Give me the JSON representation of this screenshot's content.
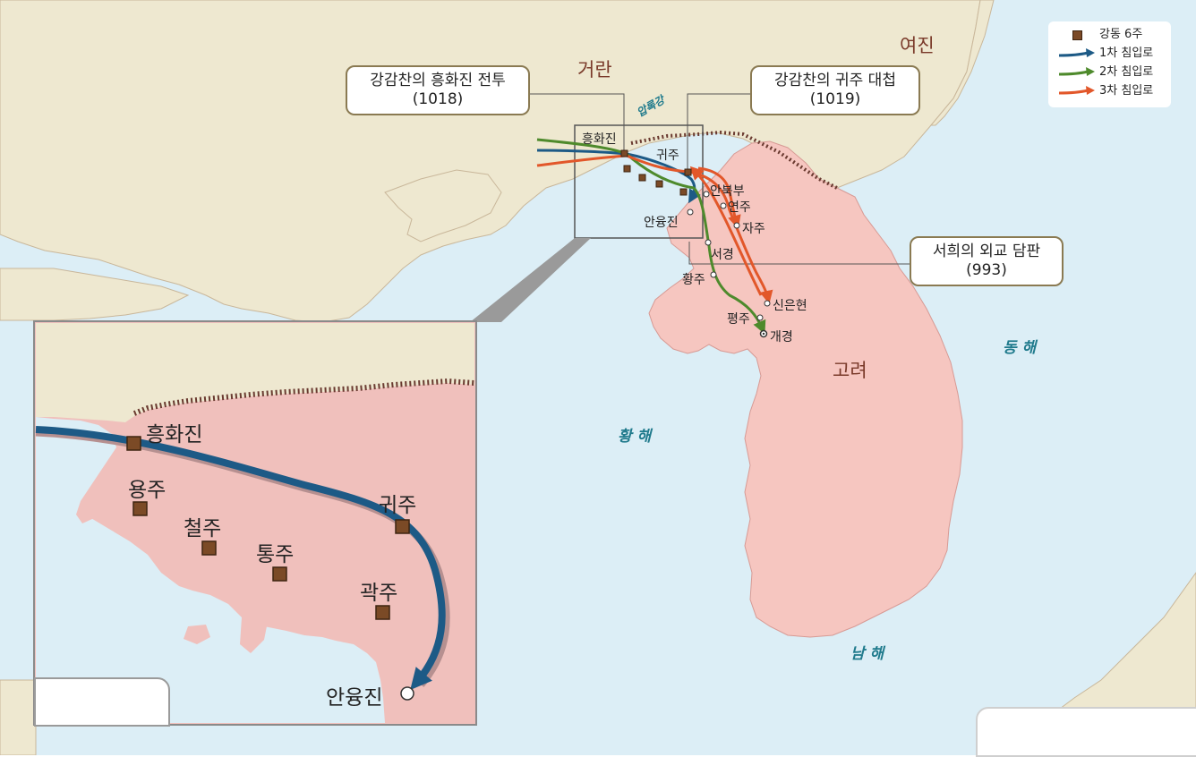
{
  "colors": {
    "sea": "#dceef6",
    "goryeo_land": "#f6c6c0",
    "foreign_land": "#eee8d0",
    "route_1": "#1d5a86",
    "route_2": "#4e8a2c",
    "route_3": "#e2572a",
    "fort_marker": "#7b4a26"
  },
  "map": {
    "regions": {
      "georan": "거란",
      "yeojin": "여진",
      "goryeo": "고려"
    },
    "seas": {
      "east": "동 해",
      "yellow": "황 해",
      "south": "남 해"
    },
    "river": "압록강",
    "places": {
      "heunghwajin": "흥화진",
      "gwiju": "귀주",
      "anbukbu": "안북부",
      "yeonju": "연주",
      "jaju": "자주",
      "anyungjin": "안융진",
      "seogyeong": "서경",
      "hwangju": "황주",
      "sineunhyeon": "신은현",
      "pyeongju": "평주",
      "gaegyeong": "개경"
    },
    "callouts": {
      "heunghwajin_battle": {
        "line1": "강감찬의 흥화진 전투",
        "line2": "(1018)"
      },
      "gwiju_battle": {
        "line1": "강감찬의 귀주 대첩",
        "line2": "(1019)"
      },
      "seohui_talks": {
        "line1": "서희의 외교 담판",
        "line2": "(993)"
      }
    }
  },
  "legend": {
    "items": [
      {
        "label": "강동 6주",
        "symbol": "square-marker-icon"
      },
      {
        "label": "1차 침입로",
        "symbol": "arrow-blue-icon"
      },
      {
        "label": "2차 침입로",
        "symbol": "arrow-green-icon"
      },
      {
        "label": "3차 침입로",
        "symbol": "arrow-orange-icon"
      }
    ]
  },
  "inset": {
    "places": {
      "heunghwajin": "흥화진",
      "yongju": "용주",
      "cheolju": "철주",
      "tongju": "통주",
      "gwiju": "귀주",
      "gwakju": "곽주",
      "anyungjin": "안융진"
    }
  }
}
